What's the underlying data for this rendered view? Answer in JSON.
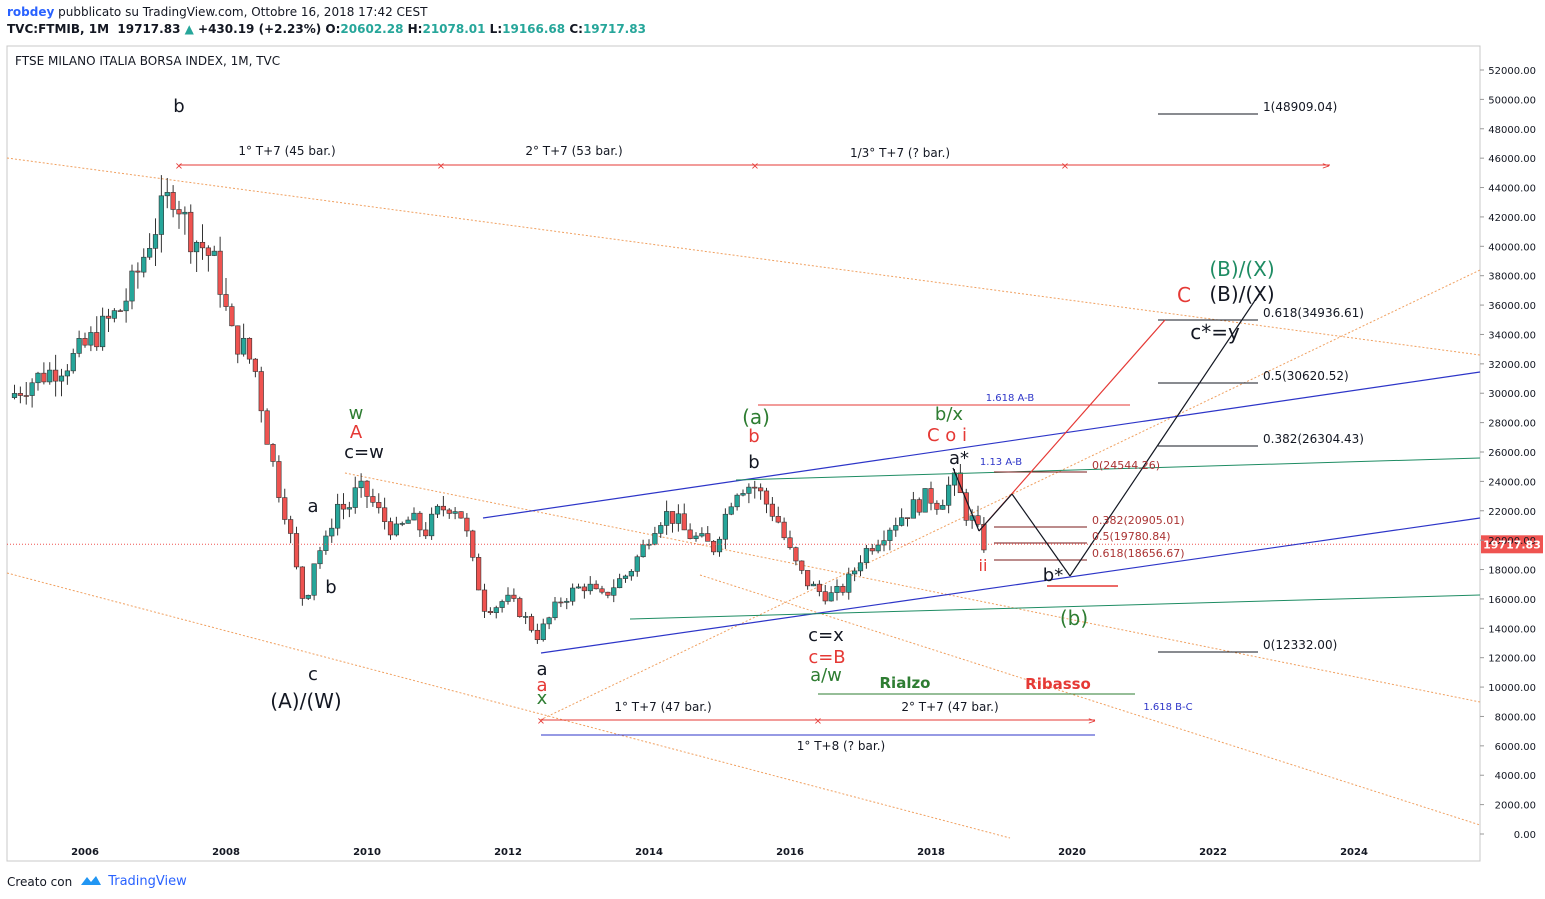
{
  "header": {
    "author": "robdey",
    "published": "pubblicato su TradingView.com, Ottobre 16, 2018 17:42 CEST",
    "ticker": "TVC:FTMIB, 1M",
    "last": "19717.83",
    "change": "+430.19 (+2.23%)",
    "o_label": "O:",
    "o": "20602.28",
    "h_label": "H:",
    "h": "21078.01",
    "l_label": "L:",
    "l": "19166.68",
    "c_label": "C:",
    "c": "19717.83"
  },
  "footer": {
    "created_with": "Creato con",
    "brand": "TradingView"
  },
  "colors": {
    "up": "#26a69a",
    "down": "#ef5350",
    "red": "#e53935",
    "green": "#2e7d32",
    "teal": "#1e8c63",
    "blue": "#2d35c8",
    "orange": "#f0a060",
    "black": "#131722"
  },
  "chart_data": {
    "type": "candlestick",
    "title": "FTSE MILANO ITALIA BORSA INDEX, 1M, TVC",
    "x_range": [
      2004.9,
      2025.8
    ],
    "y_range": [
      0,
      53000
    ],
    "x_ticks": [
      "2006",
      "2008",
      "2010",
      "2012",
      "2014",
      "2016",
      "2018",
      "2020",
      "2022",
      "2024"
    ],
    "y_ticks": [
      "52000.00",
      "50000.00",
      "48000.00",
      "46000.00",
      "44000.00",
      "42000.00",
      "40000.00",
      "38000.00",
      "36000.00",
      "34000.00",
      "32000.00",
      "30000.00",
      "28000.00",
      "26000.00",
      "24000.00",
      "22000.00",
      "20000.00",
      "18000.00",
      "16000.00",
      "14000.00",
      "12000.00",
      "10000.00",
      "8000.00",
      "6000.00",
      "4000.00",
      "2000.00",
      "0.00"
    ],
    "last_price": "19717.83",
    "price_path": [
      [
        2005.0,
        29700
      ],
      [
        2005.3,
        30800
      ],
      [
        2005.6,
        31500
      ],
      [
        2005.9,
        32300
      ],
      [
        2006.15,
        33500
      ],
      [
        2006.4,
        34800
      ],
      [
        2006.6,
        35800
      ],
      [
        2006.8,
        37800
      ],
      [
        2007.0,
        40500
      ],
      [
        2007.2,
        42600
      ],
      [
        2007.35,
        43900
      ],
      [
        2007.55,
        41000
      ],
      [
        2007.75,
        40000
      ],
      [
        2007.9,
        39000
      ],
      [
        2008.0,
        37500
      ],
      [
        2008.15,
        34000
      ],
      [
        2008.35,
        33000
      ],
      [
        2008.5,
        31500
      ],
      [
        2008.65,
        27500
      ],
      [
        2008.8,
        24000
      ],
      [
        2008.95,
        21500
      ],
      [
        2009.1,
        17500
      ],
      [
        2009.2,
        15500
      ],
      [
        2009.35,
        19000
      ],
      [
        2009.5,
        19800
      ],
      [
        2009.65,
        22500
      ],
      [
        2009.8,
        22000
      ],
      [
        2009.95,
        23500
      ],
      [
        2010.1,
        23000
      ],
      [
        2010.3,
        21500
      ],
      [
        2010.5,
        20500
      ],
      [
        2010.7,
        21500
      ],
      [
        2010.9,
        20500
      ],
      [
        2011.1,
        22000
      ],
      [
        2011.3,
        22500
      ],
      [
        2011.45,
        21500
      ],
      [
        2011.6,
        18000
      ],
      [
        2011.75,
        15500
      ],
      [
        2011.9,
        15500
      ],
      [
        2012.05,
        16000
      ],
      [
        2012.2,
        15500
      ],
      [
        2012.35,
        14500
      ],
      [
        2012.5,
        13500
      ],
      [
        2012.65,
        14500
      ],
      [
        2012.8,
        15800
      ],
      [
        2013.0,
        16500
      ],
      [
        2013.2,
        17000
      ],
      [
        2013.4,
        16000
      ],
      [
        2013.6,
        17000
      ],
      [
        2013.8,
        17800
      ],
      [
        2014.0,
        19500
      ],
      [
        2014.15,
        21000
      ],
      [
        2014.3,
        21800
      ],
      [
        2014.45,
        21500
      ],
      [
        2014.6,
        20500
      ],
      [
        2014.8,
        20000
      ],
      [
        2015.0,
        19500
      ],
      [
        2015.15,
        21500
      ],
      [
        2015.3,
        23500
      ],
      [
        2015.45,
        23800
      ],
      [
        2015.6,
        23600
      ],
      [
        2015.75,
        22500
      ],
      [
        2015.9,
        21500
      ],
      [
        2016.05,
        19500
      ],
      [
        2016.2,
        18000
      ],
      [
        2016.35,
        17000
      ],
      [
        2016.5,
        16500
      ],
      [
        2016.65,
        16200
      ],
      [
        2016.8,
        16500
      ],
      [
        2016.95,
        17500
      ],
      [
        2017.1,
        19000
      ],
      [
        2017.3,
        20000
      ],
      [
        2017.5,
        21000
      ],
      [
        2017.7,
        21800
      ],
      [
        2017.9,
        22500
      ],
      [
        2018.05,
        23000
      ],
      [
        2018.2,
        22500
      ],
      [
        2018.35,
        23800
      ],
      [
        2018.45,
        24000
      ],
      [
        2018.55,
        22000
      ],
      [
        2018.65,
        21500
      ],
      [
        2018.75,
        20500
      ],
      [
        2018.8,
        19717
      ]
    ],
    "annotations": [
      "b",
      "1° T+7 (45 bar.)",
      "2° T+7 (53 bar.)",
      "1/3° T+7 (? bar.)",
      "1(48909.04)",
      "w",
      "A",
      "c=w",
      "a",
      "b",
      "c",
      "(A)/(W)",
      "a",
      "a",
      "x",
      "1° T+7 (47 bar.)",
      "1° T+8 (? bar.)",
      "(a)",
      "b",
      "b",
      "c=x",
      "c=B",
      "a/w",
      "Rialzo",
      "Ribasso",
      "2° T+7 (47 bar.)",
      "b/x",
      "C o i",
      "a*",
      "1.13 A-B",
      "1.618 A-B",
      "1.618 B-C",
      "ii",
      "b*",
      "(b)",
      "C",
      "(B)/(X)",
      "(B)/(X)",
      "c*=y",
      "0.618(34936.61)",
      "0.5(30620.52)",
      "0.382(26304.43)",
      "0(12332.00)",
      "0(24544.26)",
      "0.382(20905.01)",
      "0.5(19780.84)",
      "0.618(18656.67)"
    ]
  }
}
